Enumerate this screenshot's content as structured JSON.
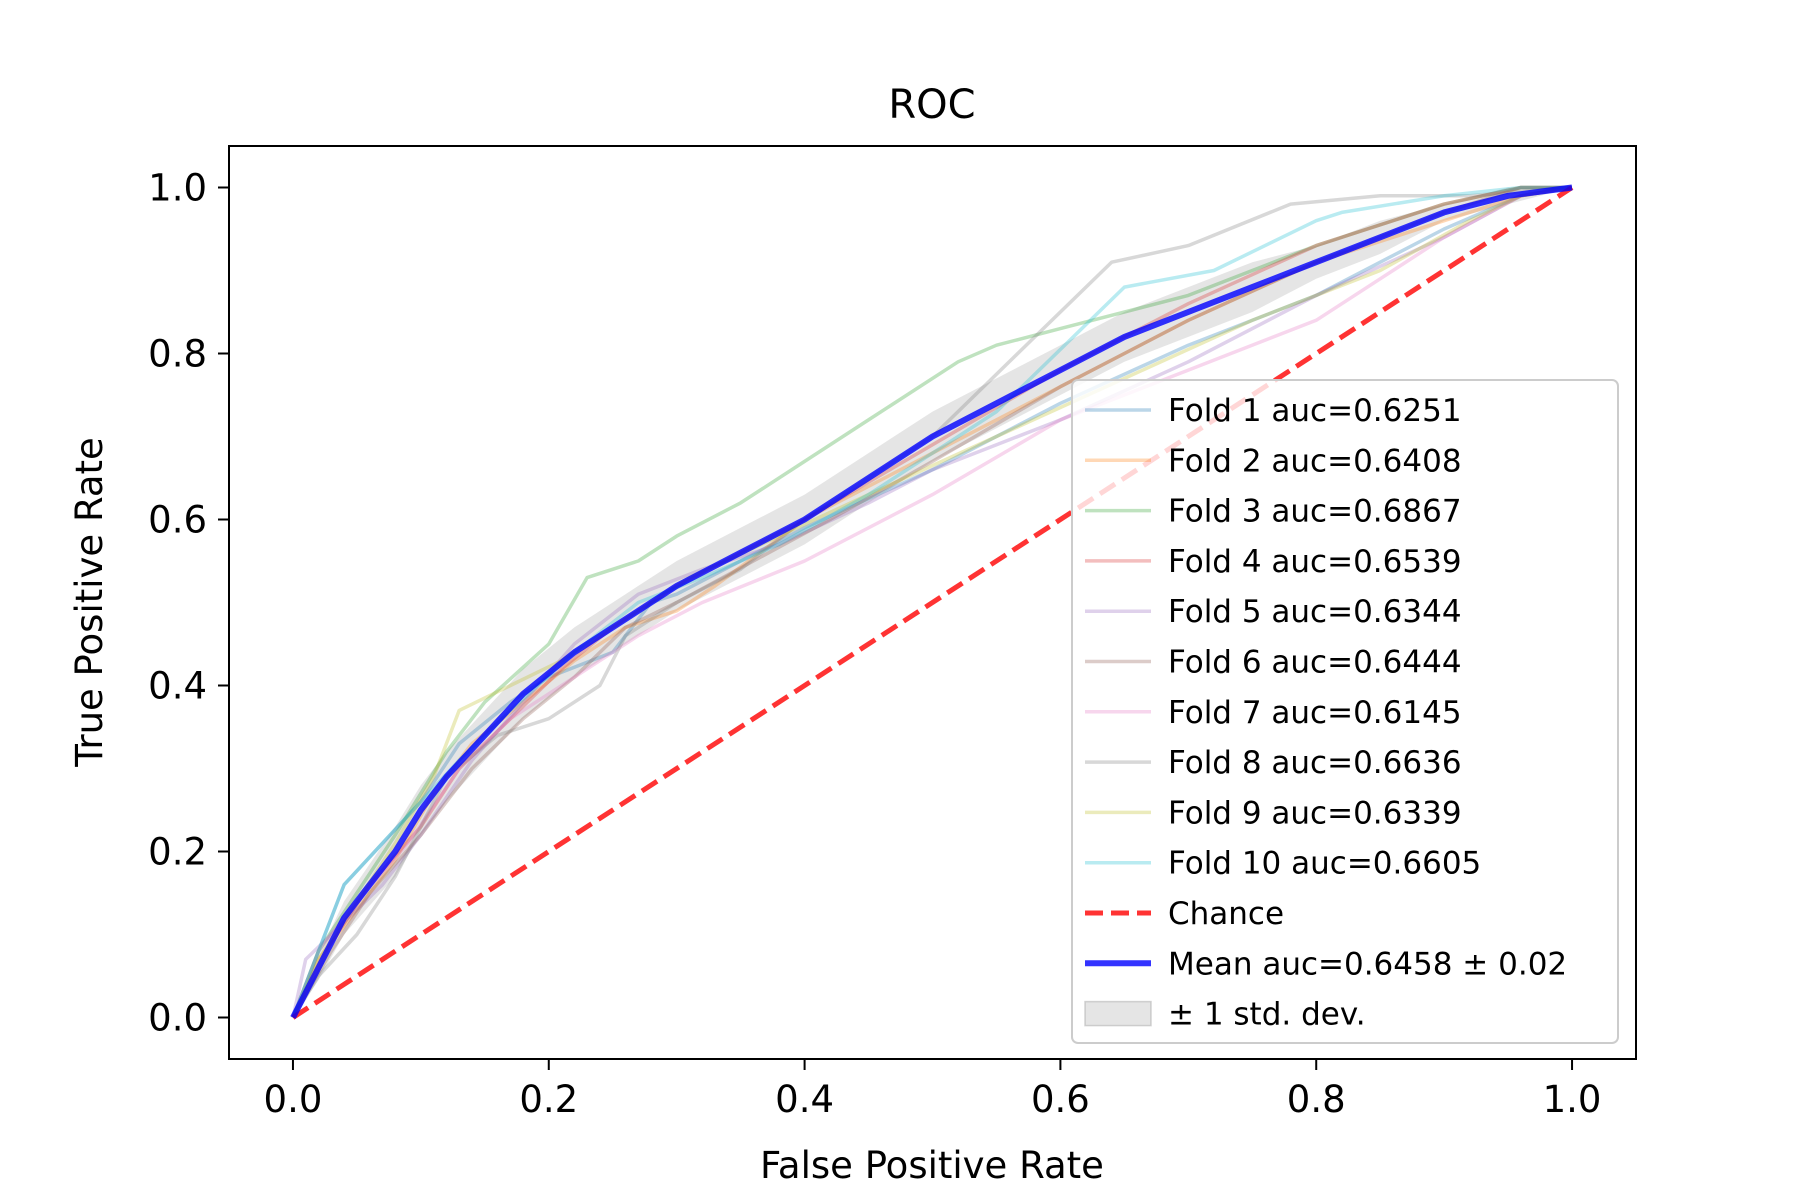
{
  "chart_data": {
    "type": "line",
    "title": "ROC",
    "xlabel": "False Positive Rate",
    "ylabel": "True Positive Rate",
    "xlim": [
      -0.05,
      1.05
    ],
    "ylim": [
      -0.05,
      1.05
    ],
    "xticks": [
      0.0,
      0.2,
      0.4,
      0.6,
      0.8,
      1.0
    ],
    "yticks": [
      0.0,
      0.2,
      0.4,
      0.6,
      0.8,
      1.0
    ],
    "xtick_labels": [
      "0.0",
      "0.2",
      "0.4",
      "0.6",
      "0.8",
      "1.0"
    ],
    "ytick_labels": [
      "0.0",
      "0.2",
      "0.4",
      "0.6",
      "0.8",
      "1.0"
    ],
    "grid": false,
    "legend_position": "lower right",
    "series": [
      {
        "name": "Fold 1 auc=0.6251",
        "color": "#1f77b4",
        "x": [
          0,
          0.02,
          0.04,
          0.07,
          0.1,
          0.13,
          0.17,
          0.2,
          0.25,
          0.28,
          0.3,
          0.35,
          0.4,
          0.5,
          0.6,
          0.7,
          0.8,
          0.9,
          0.96,
          1.0
        ],
        "y": [
          0,
          0.08,
          0.16,
          0.21,
          0.26,
          0.33,
          0.38,
          0.41,
          0.44,
          0.5,
          0.51,
          0.55,
          0.59,
          0.66,
          0.74,
          0.81,
          0.87,
          0.95,
          0.99,
          1.0
        ]
      },
      {
        "name": "Fold 2 auc=0.6408",
        "color": "#ff7f0e",
        "x": [
          0,
          0.02,
          0.05,
          0.08,
          0.11,
          0.14,
          0.18,
          0.22,
          0.26,
          0.3,
          0.33,
          0.4,
          0.5,
          0.6,
          0.7,
          0.8,
          0.9,
          0.96,
          1.0
        ],
        "y": [
          0,
          0.07,
          0.13,
          0.19,
          0.27,
          0.33,
          0.38,
          0.43,
          0.47,
          0.49,
          0.52,
          0.6,
          0.68,
          0.76,
          0.84,
          0.91,
          0.96,
          0.99,
          1.0
        ]
      },
      {
        "name": "Fold 3 auc=0.6867",
        "color": "#2ca02c",
        "x": [
          0,
          0.02,
          0.05,
          0.08,
          0.12,
          0.15,
          0.2,
          0.23,
          0.27,
          0.3,
          0.35,
          0.4,
          0.45,
          0.52,
          0.55,
          0.6,
          0.7,
          0.8,
          0.9,
          0.96,
          1.0
        ],
        "y": [
          0,
          0.08,
          0.15,
          0.22,
          0.32,
          0.38,
          0.45,
          0.53,
          0.55,
          0.58,
          0.62,
          0.67,
          0.72,
          0.79,
          0.81,
          0.83,
          0.87,
          0.93,
          0.98,
          1.0,
          1.0
        ]
      },
      {
        "name": "Fold 4 auc=0.6539",
        "color": "#d62728",
        "x": [
          0,
          0.03,
          0.06,
          0.1,
          0.13,
          0.17,
          0.21,
          0.25,
          0.3,
          0.35,
          0.4,
          0.5,
          0.6,
          0.7,
          0.8,
          0.9,
          0.96,
          1.0
        ],
        "y": [
          0,
          0.09,
          0.16,
          0.23,
          0.3,
          0.36,
          0.42,
          0.47,
          0.52,
          0.56,
          0.6,
          0.69,
          0.78,
          0.86,
          0.93,
          0.98,
          1.0,
          1.0
        ]
      },
      {
        "name": "Fold 5 auc=0.6344",
        "color": "#9467bd",
        "x": [
          0,
          0.01,
          0.03,
          0.07,
          0.1,
          0.14,
          0.18,
          0.22,
          0.27,
          0.32,
          0.38,
          0.45,
          0.5,
          0.6,
          0.7,
          0.8,
          0.9,
          0.96,
          1.0
        ],
        "y": [
          0,
          0.07,
          0.1,
          0.16,
          0.22,
          0.31,
          0.38,
          0.45,
          0.51,
          0.54,
          0.57,
          0.62,
          0.66,
          0.72,
          0.79,
          0.87,
          0.94,
          0.99,
          1.0
        ]
      },
      {
        "name": "Fold 6 auc=0.6444",
        "color": "#8c564b",
        "x": [
          0,
          0.03,
          0.06,
          0.1,
          0.14,
          0.18,
          0.22,
          0.26,
          0.3,
          0.36,
          0.42,
          0.5,
          0.6,
          0.7,
          0.8,
          0.9,
          0.96,
          1.0
        ],
        "y": [
          0,
          0.08,
          0.15,
          0.22,
          0.3,
          0.36,
          0.41,
          0.47,
          0.5,
          0.55,
          0.6,
          0.67,
          0.76,
          0.84,
          0.91,
          0.97,
          1.0,
          1.0
        ]
      },
      {
        "name": "Fold 7 auc=0.6145",
        "color": "#e377c2",
        "x": [
          0,
          0.02,
          0.05,
          0.09,
          0.13,
          0.17,
          0.22,
          0.27,
          0.32,
          0.4,
          0.5,
          0.6,
          0.7,
          0.8,
          0.85,
          0.9,
          0.96,
          1.0
        ],
        "y": [
          0,
          0.08,
          0.14,
          0.21,
          0.3,
          0.36,
          0.41,
          0.46,
          0.5,
          0.55,
          0.63,
          0.72,
          0.78,
          0.84,
          0.89,
          0.94,
          0.99,
          1.0
        ]
      },
      {
        "name": "Fold 8 auc=0.6636",
        "color": "#7f7f7f",
        "x": [
          0,
          0.02,
          0.05,
          0.08,
          0.12,
          0.16,
          0.2,
          0.24,
          0.26,
          0.3,
          0.35,
          0.4,
          0.5,
          0.58,
          0.64,
          0.7,
          0.78,
          0.85,
          0.92,
          1.0
        ],
        "y": [
          0,
          0.05,
          0.1,
          0.17,
          0.29,
          0.34,
          0.36,
          0.4,
          0.46,
          0.5,
          0.54,
          0.6,
          0.7,
          0.82,
          0.91,
          0.93,
          0.98,
          0.99,
          0.99,
          1.0
        ]
      },
      {
        "name": "Fold 9 auc=0.6339",
        "color": "#bcbd22",
        "x": [
          0,
          0.02,
          0.05,
          0.08,
          0.11,
          0.13,
          0.17,
          0.21,
          0.26,
          0.31,
          0.38,
          0.45,
          0.55,
          0.65,
          0.75,
          0.85,
          0.92,
          0.96,
          1.0
        ],
        "y": [
          0,
          0.07,
          0.14,
          0.21,
          0.29,
          0.37,
          0.4,
          0.43,
          0.48,
          0.53,
          0.58,
          0.63,
          0.7,
          0.77,
          0.84,
          0.9,
          0.96,
          0.99,
          1.0
        ]
      },
      {
        "name": "Fold 10 auc=0.6605",
        "color": "#17becf",
        "x": [
          0,
          0.02,
          0.04,
          0.07,
          0.1,
          0.13,
          0.17,
          0.22,
          0.27,
          0.32,
          0.38,
          0.45,
          0.55,
          0.65,
          0.72,
          0.8,
          0.82,
          0.9,
          0.96,
          1.0
        ],
        "y": [
          0,
          0.08,
          0.16,
          0.21,
          0.26,
          0.31,
          0.37,
          0.44,
          0.5,
          0.53,
          0.57,
          0.63,
          0.73,
          0.88,
          0.9,
          0.96,
          0.97,
          0.99,
          1.0,
          1.0
        ]
      },
      {
        "name": "Chance",
        "color": "#ff0000",
        "style": "dashed",
        "x": [
          0,
          1
        ],
        "y": [
          0,
          1
        ]
      },
      {
        "name": "Mean auc=0.6458 ± 0.02",
        "color": "#0000ff",
        "x": [
          0,
          0.02,
          0.04,
          0.06,
          0.08,
          0.1,
          0.12,
          0.15,
          0.18,
          0.22,
          0.26,
          0.3,
          0.35,
          0.4,
          0.45,
          0.5,
          0.55,
          0.6,
          0.65,
          0.7,
          0.75,
          0.8,
          0.85,
          0.9,
          0.95,
          1.0
        ],
        "y": [
          0,
          0.06,
          0.12,
          0.16,
          0.2,
          0.25,
          0.29,
          0.34,
          0.39,
          0.44,
          0.48,
          0.52,
          0.56,
          0.6,
          0.65,
          0.7,
          0.74,
          0.78,
          0.82,
          0.85,
          0.88,
          0.91,
          0.94,
          0.97,
          0.99,
          1.0
        ]
      }
    ],
    "band": {
      "name": "± 1 std. dev.",
      "color": "#a9a9a9",
      "x": [
        0,
        0.02,
        0.04,
        0.06,
        0.08,
        0.1,
        0.12,
        0.15,
        0.18,
        0.22,
        0.26,
        0.3,
        0.35,
        0.4,
        0.45,
        0.5,
        0.55,
        0.6,
        0.65,
        0.7,
        0.75,
        0.8,
        0.85,
        0.9,
        0.95,
        1.0
      ],
      "upper": [
        0,
        0.075,
        0.14,
        0.185,
        0.23,
        0.28,
        0.32,
        0.37,
        0.42,
        0.47,
        0.51,
        0.55,
        0.59,
        0.63,
        0.68,
        0.73,
        0.77,
        0.81,
        0.85,
        0.88,
        0.91,
        0.93,
        0.96,
        0.98,
        1.0,
        1.0
      ],
      "lower": [
        0,
        0.045,
        0.1,
        0.135,
        0.17,
        0.22,
        0.26,
        0.31,
        0.36,
        0.41,
        0.45,
        0.49,
        0.53,
        0.57,
        0.62,
        0.67,
        0.71,
        0.75,
        0.79,
        0.82,
        0.85,
        0.89,
        0.92,
        0.96,
        0.98,
        1.0
      ]
    },
    "legend_entries": [
      {
        "label": "Fold 1 auc=0.6251",
        "color": "#1f77b4",
        "kind": "line"
      },
      {
        "label": "Fold 2 auc=0.6408",
        "color": "#ff7f0e",
        "kind": "line"
      },
      {
        "label": "Fold 3 auc=0.6867",
        "color": "#2ca02c",
        "kind": "line"
      },
      {
        "label": "Fold 4 auc=0.6539",
        "color": "#d62728",
        "kind": "line"
      },
      {
        "label": "Fold 5 auc=0.6344",
        "color": "#9467bd",
        "kind": "line"
      },
      {
        "label": "Fold 6 auc=0.6444",
        "color": "#8c564b",
        "kind": "line"
      },
      {
        "label": "Fold 7 auc=0.6145",
        "color": "#e377c2",
        "kind": "line"
      },
      {
        "label": "Fold 8 auc=0.6636",
        "color": "#7f7f7f",
        "kind": "line"
      },
      {
        "label": "Fold 9 auc=0.6339",
        "color": "#bcbd22",
        "kind": "line"
      },
      {
        "label": "Fold 10 auc=0.6605",
        "color": "#17becf",
        "kind": "line"
      },
      {
        "label": "Chance",
        "color": "#ff0000",
        "kind": "dashed"
      },
      {
        "label": "Mean auc=0.6458 ± 0.02",
        "color": "#0000ff",
        "kind": "thick"
      },
      {
        "label": "± 1 std. dev.",
        "color": "#a9a9a9",
        "kind": "patch"
      }
    ]
  }
}
